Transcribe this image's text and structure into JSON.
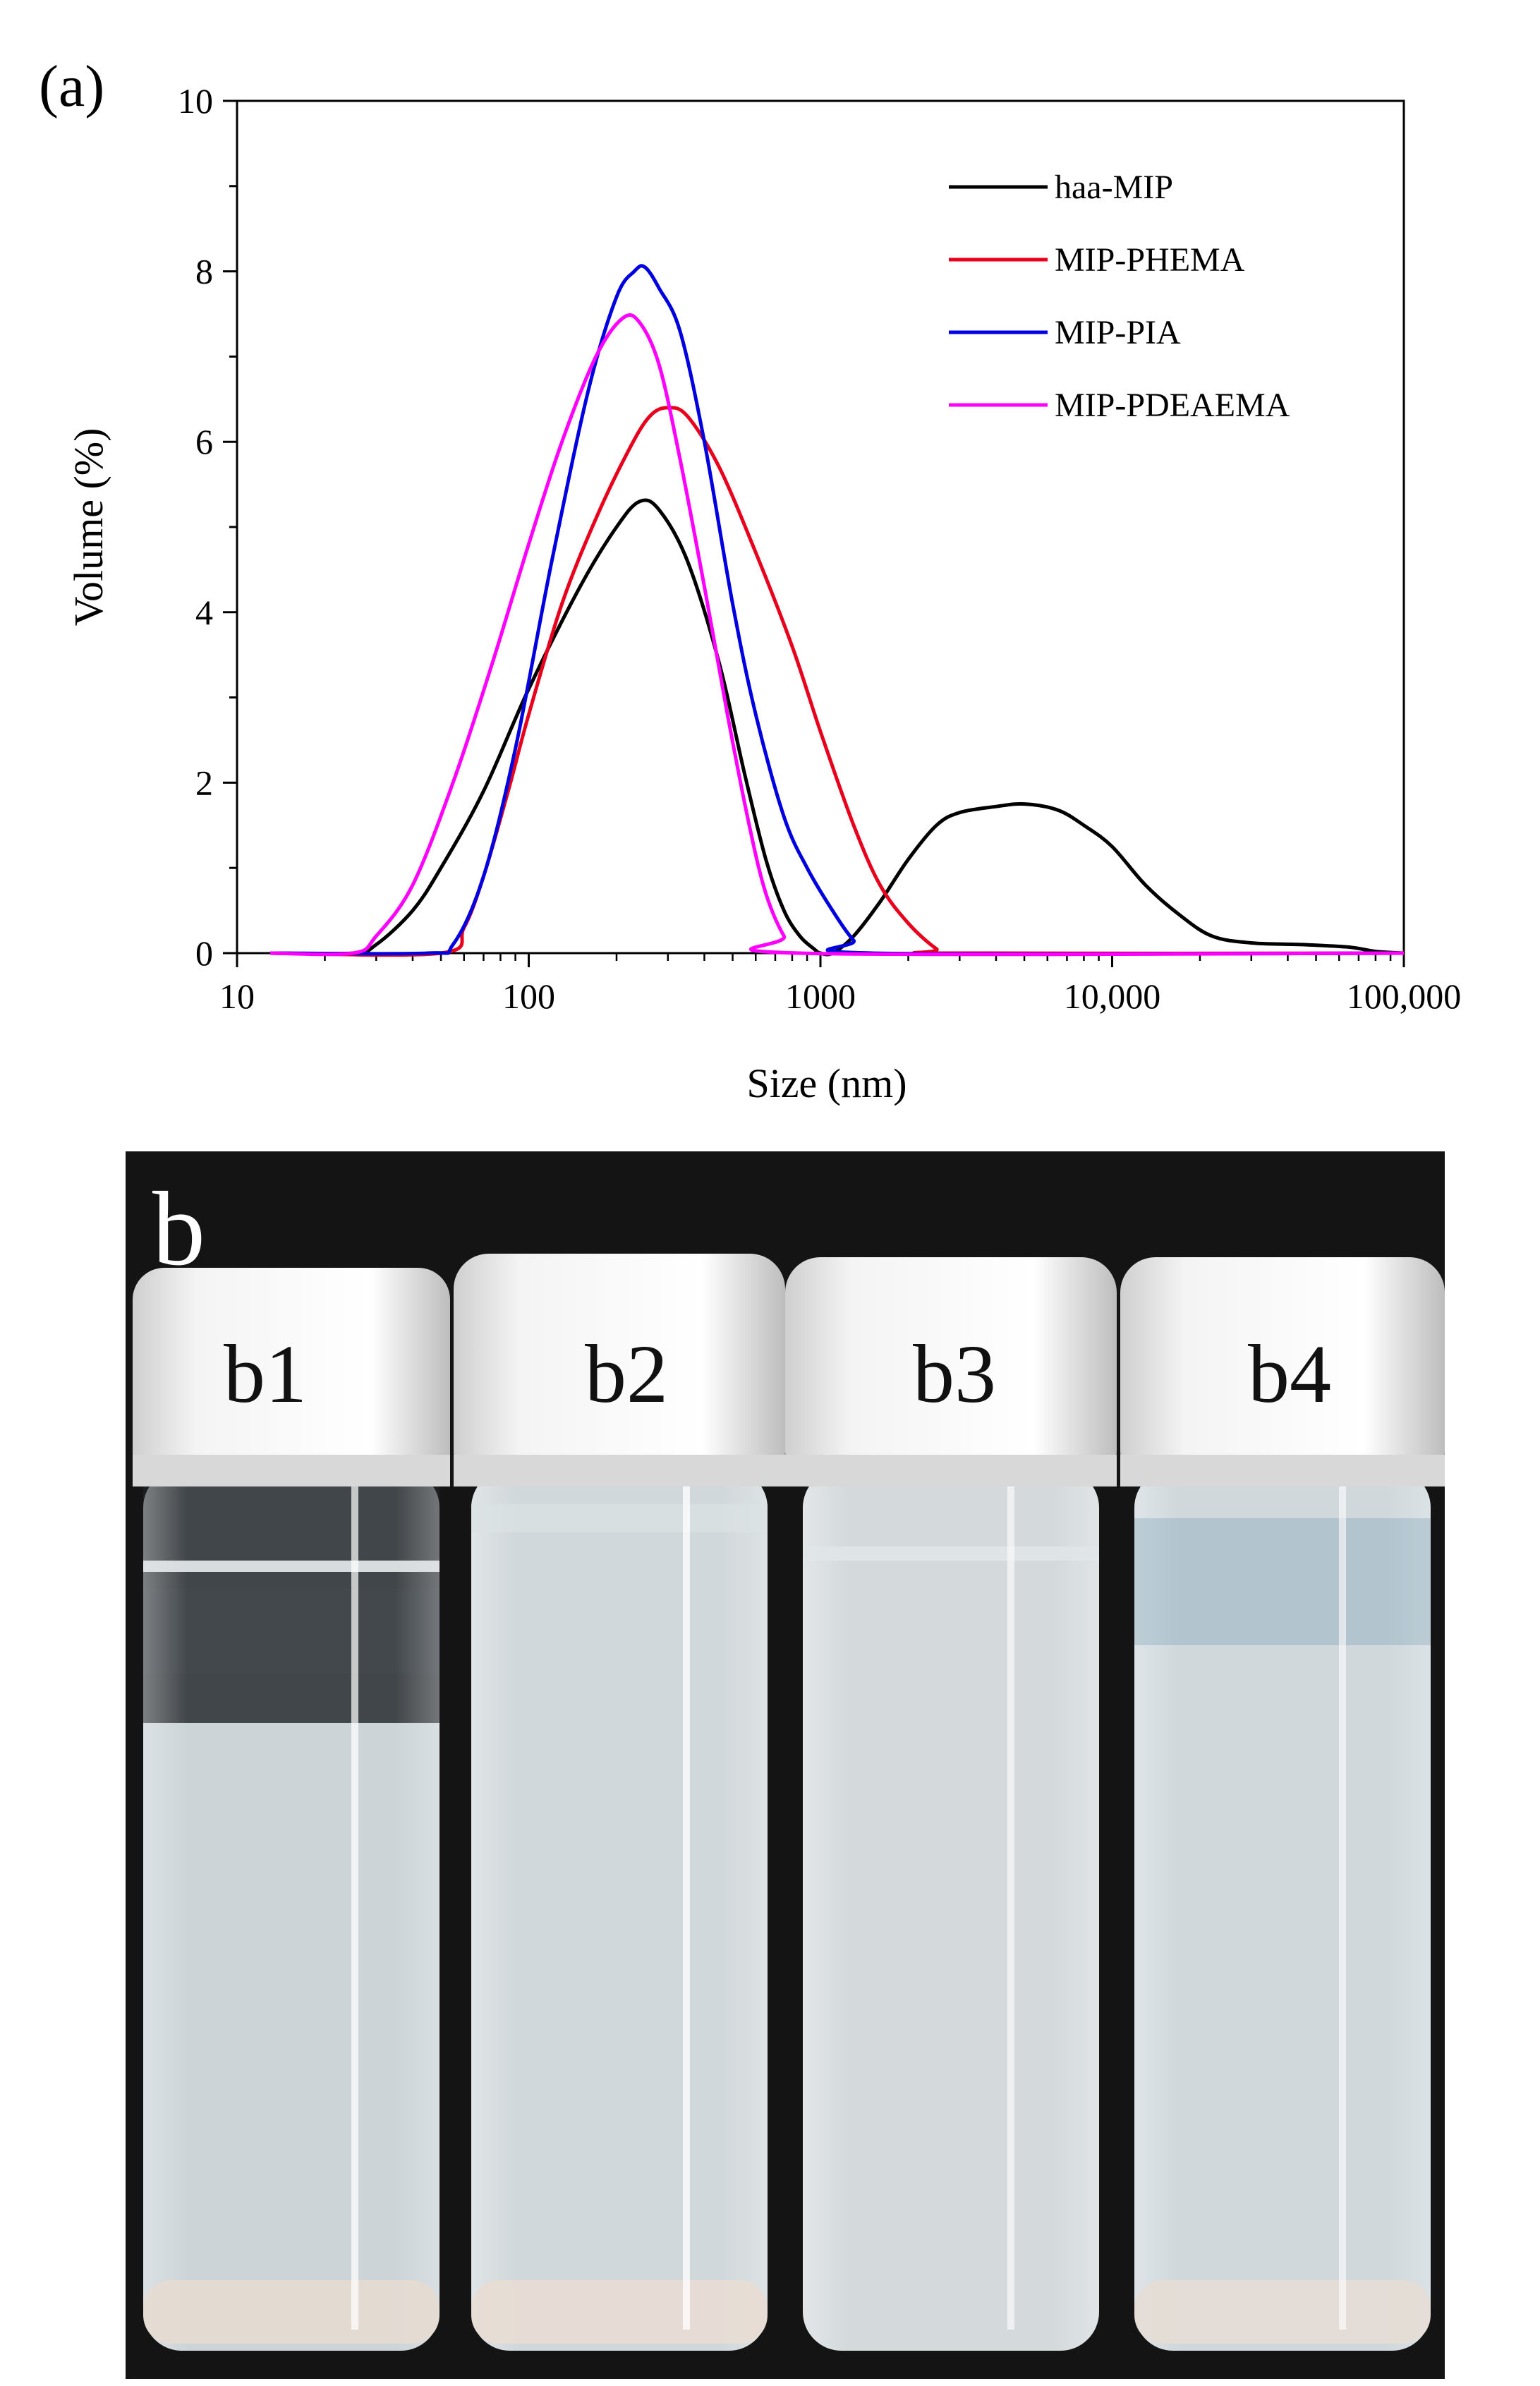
{
  "panel_a_label": "(a)",
  "panel_b_label": "b",
  "chart_data": {
    "type": "line",
    "title": "",
    "xlabel": "Size (nm)",
    "ylabel": "Volume (%)",
    "xscale": "log",
    "xlim": [
      10,
      100000
    ],
    "ylim": [
      0,
      10
    ],
    "x_ticks": [
      10,
      100,
      1000,
      10000,
      100000
    ],
    "x_tick_labels": [
      "10",
      "100",
      "1000",
      "10,000",
      "100,000"
    ],
    "y_ticks": [
      0,
      2,
      4,
      6,
      8,
      10
    ],
    "y_tick_labels": [
      "0",
      "2",
      "4",
      "6",
      "8",
      "10"
    ],
    "grid": false,
    "legend_position": "top-right",
    "series": [
      {
        "name": "haa-MIP",
        "color": "#000000",
        "points": [
          [
            13,
            0
          ],
          [
            25,
            0
          ],
          [
            30,
            0.1
          ],
          [
            40,
            0.5
          ],
          [
            50,
            1.0
          ],
          [
            70,
            1.9
          ],
          [
            100,
            3.1
          ],
          [
            150,
            4.3
          ],
          [
            200,
            5.0
          ],
          [
            240,
            5.3
          ],
          [
            280,
            5.2
          ],
          [
            350,
            4.6
          ],
          [
            450,
            3.4
          ],
          [
            550,
            2.1
          ],
          [
            650,
            1.1
          ],
          [
            750,
            0.5
          ],
          [
            850,
            0.2
          ],
          [
            950,
            0.05
          ],
          [
            1000,
            0
          ],
          [
            1100,
            0
          ],
          [
            1300,
            0.2
          ],
          [
            1600,
            0.6
          ],
          [
            2000,
            1.1
          ],
          [
            2500,
            1.5
          ],
          [
            3000,
            1.65
          ],
          [
            4000,
            1.72
          ],
          [
            5000,
            1.75
          ],
          [
            6500,
            1.68
          ],
          [
            8000,
            1.5
          ],
          [
            10000,
            1.25
          ],
          [
            13000,
            0.8
          ],
          [
            17000,
            0.45
          ],
          [
            22000,
            0.2
          ],
          [
            30000,
            0.12
          ],
          [
            45000,
            0.1
          ],
          [
            65000,
            0.07
          ],
          [
            80000,
            0.02
          ],
          [
            100000,
            0
          ]
        ]
      },
      {
        "name": "MIP-PHEMA",
        "color": "#e8001c",
        "points": [
          [
            13,
            0
          ],
          [
            50,
            0
          ],
          [
            60,
            0.3
          ],
          [
            70,
            0.9
          ],
          [
            85,
            1.9
          ],
          [
            100,
            2.8
          ],
          [
            130,
            4.1
          ],
          [
            170,
            5.1
          ],
          [
            220,
            5.9
          ],
          [
            260,
            6.3
          ],
          [
            300,
            6.4
          ],
          [
            350,
            6.3
          ],
          [
            450,
            5.7
          ],
          [
            600,
            4.7
          ],
          [
            800,
            3.6
          ],
          [
            1000,
            2.6
          ],
          [
            1300,
            1.5
          ],
          [
            1600,
            0.8
          ],
          [
            2000,
            0.35
          ],
          [
            2500,
            0.05
          ],
          [
            2800,
            0
          ],
          [
            100000,
            0
          ]
        ]
      },
      {
        "name": "MIP-PIA",
        "color": "#0000e0",
        "points": [
          [
            13,
            0
          ],
          [
            45,
            0
          ],
          [
            55,
            0.1
          ],
          [
            70,
            0.9
          ],
          [
            90,
            2.4
          ],
          [
            120,
            4.6
          ],
          [
            160,
            6.6
          ],
          [
            200,
            7.7
          ],
          [
            230,
            8.0
          ],
          [
            250,
            8.05
          ],
          [
            280,
            7.8
          ],
          [
            330,
            7.3
          ],
          [
            400,
            6.0
          ],
          [
            500,
            4.1
          ],
          [
            600,
            2.8
          ],
          [
            750,
            1.6
          ],
          [
            900,
            1.0
          ],
          [
            1100,
            0.5
          ],
          [
            1300,
            0.15
          ],
          [
            1500,
            0
          ],
          [
            100000,
            0
          ]
        ]
      },
      {
        "name": "MIP-PDEAEMA",
        "color": "#ff00ff",
        "points": [
          [
            13,
            0
          ],
          [
            25,
            0
          ],
          [
            30,
            0.2
          ],
          [
            40,
            0.8
          ],
          [
            55,
            2.0
          ],
          [
            75,
            3.4
          ],
          [
            100,
            4.8
          ],
          [
            130,
            6.0
          ],
          [
            170,
            7.0
          ],
          [
            210,
            7.45
          ],
          [
            240,
            7.4
          ],
          [
            280,
            6.9
          ],
          [
            330,
            5.8
          ],
          [
            400,
            4.3
          ],
          [
            480,
            2.8
          ],
          [
            570,
            1.5
          ],
          [
            650,
            0.7
          ],
          [
            750,
            0.2
          ],
          [
            850,
            0
          ],
          [
            100000,
            0
          ]
        ]
      }
    ]
  },
  "photo": {
    "vials": [
      {
        "label": "b1"
      },
      {
        "label": "b2"
      },
      {
        "label": "b3"
      },
      {
        "label": "b4"
      }
    ],
    "colors": {
      "background": "#141414",
      "cap": "#ececec",
      "liquid_b1": "#c9d2d6",
      "liquid_b2": "#cfd6d9",
      "liquid_b3": "#d2d8da",
      "liquid_b4": "#cdd6da"
    }
  }
}
